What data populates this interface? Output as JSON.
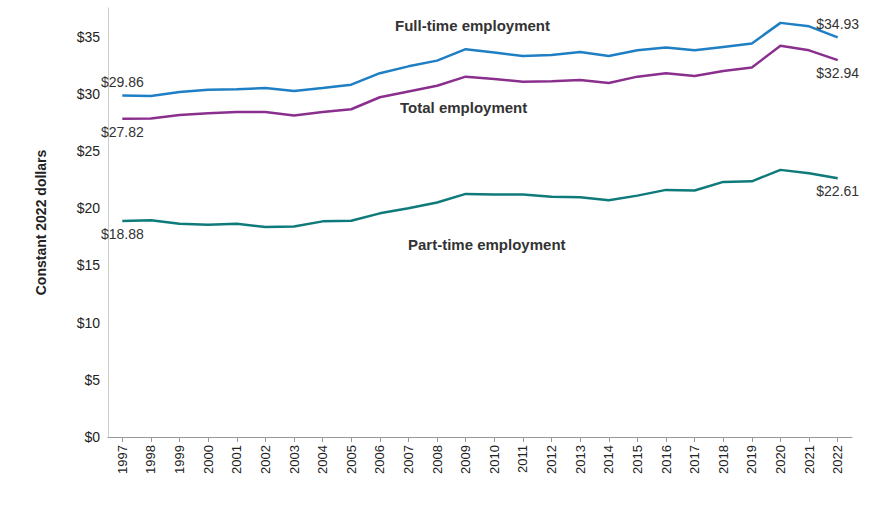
{
  "chart_data": {
    "type": "line",
    "y_label": "Constant 2022 dollars",
    "categories": [
      "1997",
      "1998",
      "1999",
      "2000",
      "2001",
      "2002",
      "2003",
      "2004",
      "2005",
      "2006",
      "2007",
      "2008",
      "2009",
      "2010",
      "2011",
      "2012",
      "2013",
      "2014",
      "2015",
      "2016",
      "2017",
      "2018",
      "2019",
      "2020",
      "2021",
      "2022"
    ],
    "series": [
      {
        "name": "Full-time employment",
        "color": "#1f7fc4",
        "values": [
          29.86,
          29.8,
          30.15,
          30.35,
          30.4,
          30.5,
          30.25,
          30.5,
          30.8,
          31.8,
          32.4,
          32.9,
          33.9,
          33.6,
          33.3,
          33.4,
          33.65,
          33.3,
          33.8,
          34.05,
          33.8,
          34.1,
          34.4,
          36.2,
          35.9,
          34.93
        ],
        "value_labels": [
          "$29.86",
          null,
          null,
          null,
          null,
          null,
          null,
          null,
          null,
          null,
          null,
          null,
          null,
          null,
          null,
          null,
          null,
          null,
          null,
          null,
          null,
          null,
          null,
          null,
          null,
          "$34.93"
        ]
      },
      {
        "name": "Total employment",
        "color": "#8b2f8f",
        "values": [
          27.82,
          27.85,
          28.15,
          28.3,
          28.4,
          28.4,
          28.1,
          28.4,
          28.65,
          29.7,
          30.2,
          30.7,
          31.5,
          31.3,
          31.05,
          31.1,
          31.2,
          30.95,
          31.5,
          31.8,
          31.55,
          32.0,
          32.3,
          34.2,
          33.8,
          32.94
        ],
        "value_labels": [
          "$27.82",
          null,
          null,
          null,
          null,
          null,
          null,
          null,
          null,
          null,
          null,
          null,
          null,
          null,
          null,
          null,
          null,
          null,
          null,
          null,
          null,
          null,
          null,
          null,
          null,
          "$32.94"
        ]
      },
      {
        "name": "Part-time employment",
        "color": "#0f7a7a",
        "values": [
          18.88,
          18.95,
          18.65,
          18.55,
          18.65,
          18.35,
          18.4,
          18.85,
          18.9,
          19.55,
          20.0,
          20.5,
          21.25,
          21.2,
          21.2,
          21.0,
          20.95,
          20.7,
          21.1,
          21.6,
          21.55,
          22.3,
          22.35,
          23.35,
          23.05,
          22.61
        ],
        "value_labels": [
          "$18.88",
          null,
          null,
          null,
          null,
          null,
          null,
          null,
          null,
          null,
          null,
          null,
          null,
          null,
          null,
          null,
          null,
          null,
          null,
          null,
          null,
          null,
          null,
          null,
          null,
          "$22.61"
        ]
      }
    ],
    "ylim": [
      0,
      37.5
    ],
    "yticks": [
      {
        "value": 0,
        "label": "$0"
      },
      {
        "value": 5,
        "label": "$5"
      },
      {
        "value": 10,
        "label": "$10"
      },
      {
        "value": 15,
        "label": "$15"
      },
      {
        "value": 20,
        "label": "$20"
      },
      {
        "value": 25,
        "label": "$25"
      },
      {
        "value": 30,
        "label": "$30"
      },
      {
        "value": 35,
        "label": "$35"
      }
    ],
    "grid": false
  }
}
